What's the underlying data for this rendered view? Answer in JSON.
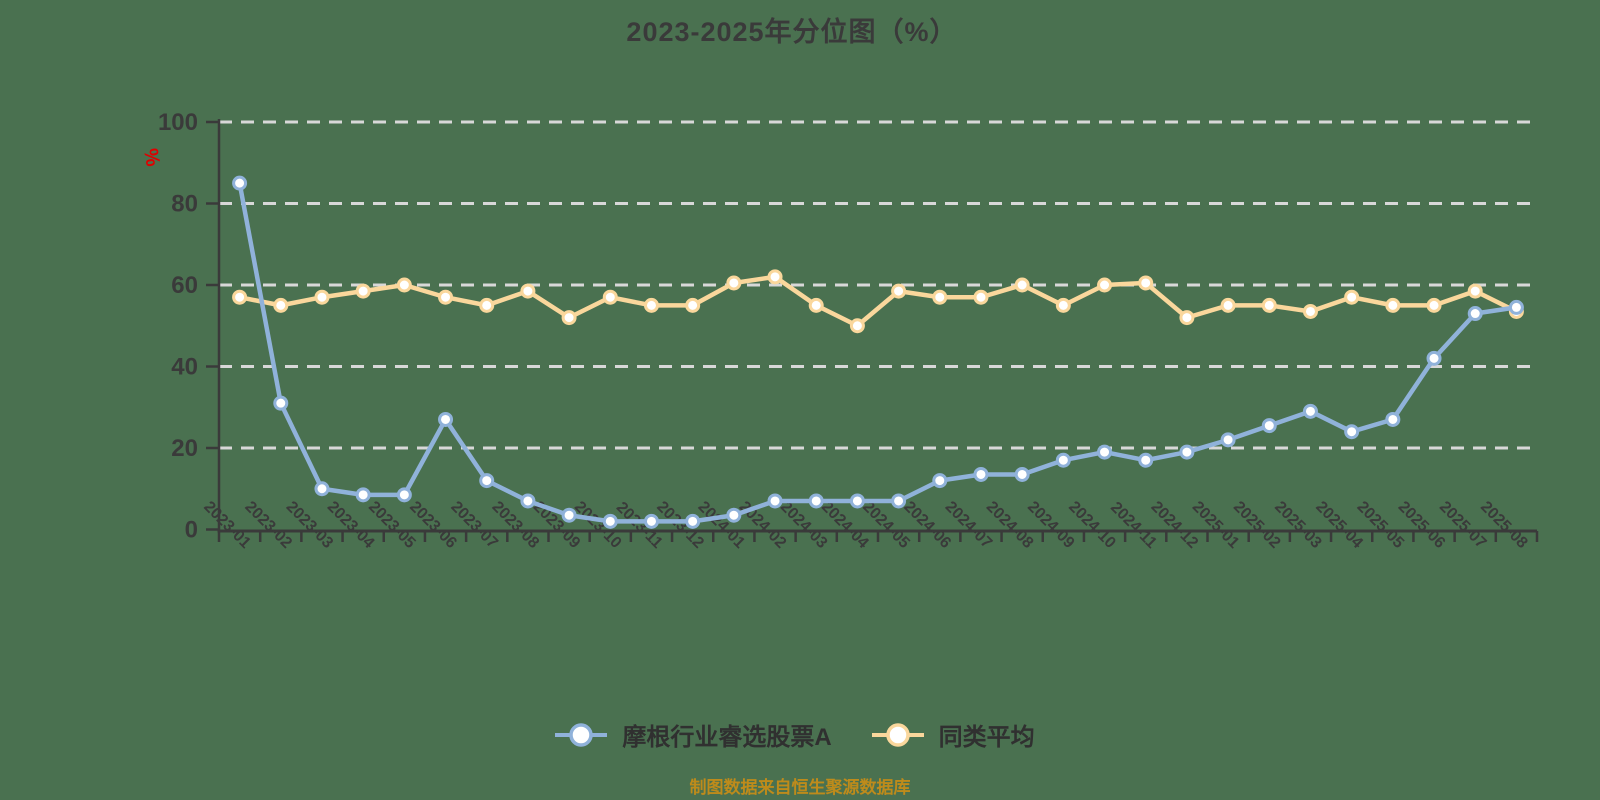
{
  "title": "2023-2025年分位图（%）",
  "y_axis": {
    "unit": "%"
  },
  "legend": {
    "fund": "摩根行业睿选股票A",
    "average": "同类平均"
  },
  "footer": {
    "source_note": "制图数据来自恒生聚源数据库"
  },
  "colors": {
    "background": "#4A7150",
    "fund": "#90B2DA",
    "average": "#FAD79C",
    "marker_fill": "#FFFFFF",
    "grid": "#D8D8D8",
    "axis": "#3A3A3A",
    "tick_text": "#3A3A3A",
    "unit_label": "#E00000",
    "source_note": "#BE8B1B",
    "legend_text": "#303030"
  },
  "chart_data": {
    "type": "line",
    "title": "2023-2025年分位图（%）",
    "xlabel": "",
    "ylabel": "%",
    "ylim": [
      0,
      100
    ],
    "y_ticks": [
      0,
      20,
      40,
      60,
      80,
      100
    ],
    "y_gridlines": [
      20,
      40,
      60,
      80,
      100
    ],
    "grid": "dashed-horizontal",
    "legend_position": "bottom",
    "categories": [
      "2023-01",
      "2023-02",
      "2023-03",
      "2023-04",
      "2023-05",
      "2023-06",
      "2023-07",
      "2023-08",
      "2023-09",
      "2023-10",
      "2023-11",
      "2023-12",
      "2024-01",
      "2024-02",
      "2024-03",
      "2024-04",
      "2024-05",
      "2024-06",
      "2024-07",
      "2024-08",
      "2024-09",
      "2024-10",
      "2024-11",
      "2024-12",
      "2025-01",
      "2025-02",
      "2025-03",
      "2025-04",
      "2025-05",
      "2025-06",
      "2025-07",
      "2025-08"
    ],
    "series": [
      {
        "name": "摩根行业睿选股票A",
        "color": "#90B2DA",
        "values": [
          85,
          31,
          10,
          8.5,
          8.5,
          27,
          12,
          7,
          3.5,
          2,
          2,
          2,
          3.5,
          7,
          7,
          7,
          7,
          12,
          13.5,
          13.5,
          17,
          19,
          17,
          19,
          22,
          25.5,
          29,
          24,
          27,
          42,
          53,
          54.5
        ]
      },
      {
        "name": "同类平均",
        "color": "#FAD79C",
        "values": [
          57,
          55,
          57,
          58.5,
          60,
          57,
          55,
          58.5,
          52,
          57,
          55,
          55,
          60.5,
          62,
          55,
          50,
          58.5,
          57,
          57,
          60,
          55,
          60,
          60.5,
          52,
          55,
          55,
          53.5,
          57,
          55,
          55,
          58.5,
          53.5
        ]
      }
    ]
  }
}
